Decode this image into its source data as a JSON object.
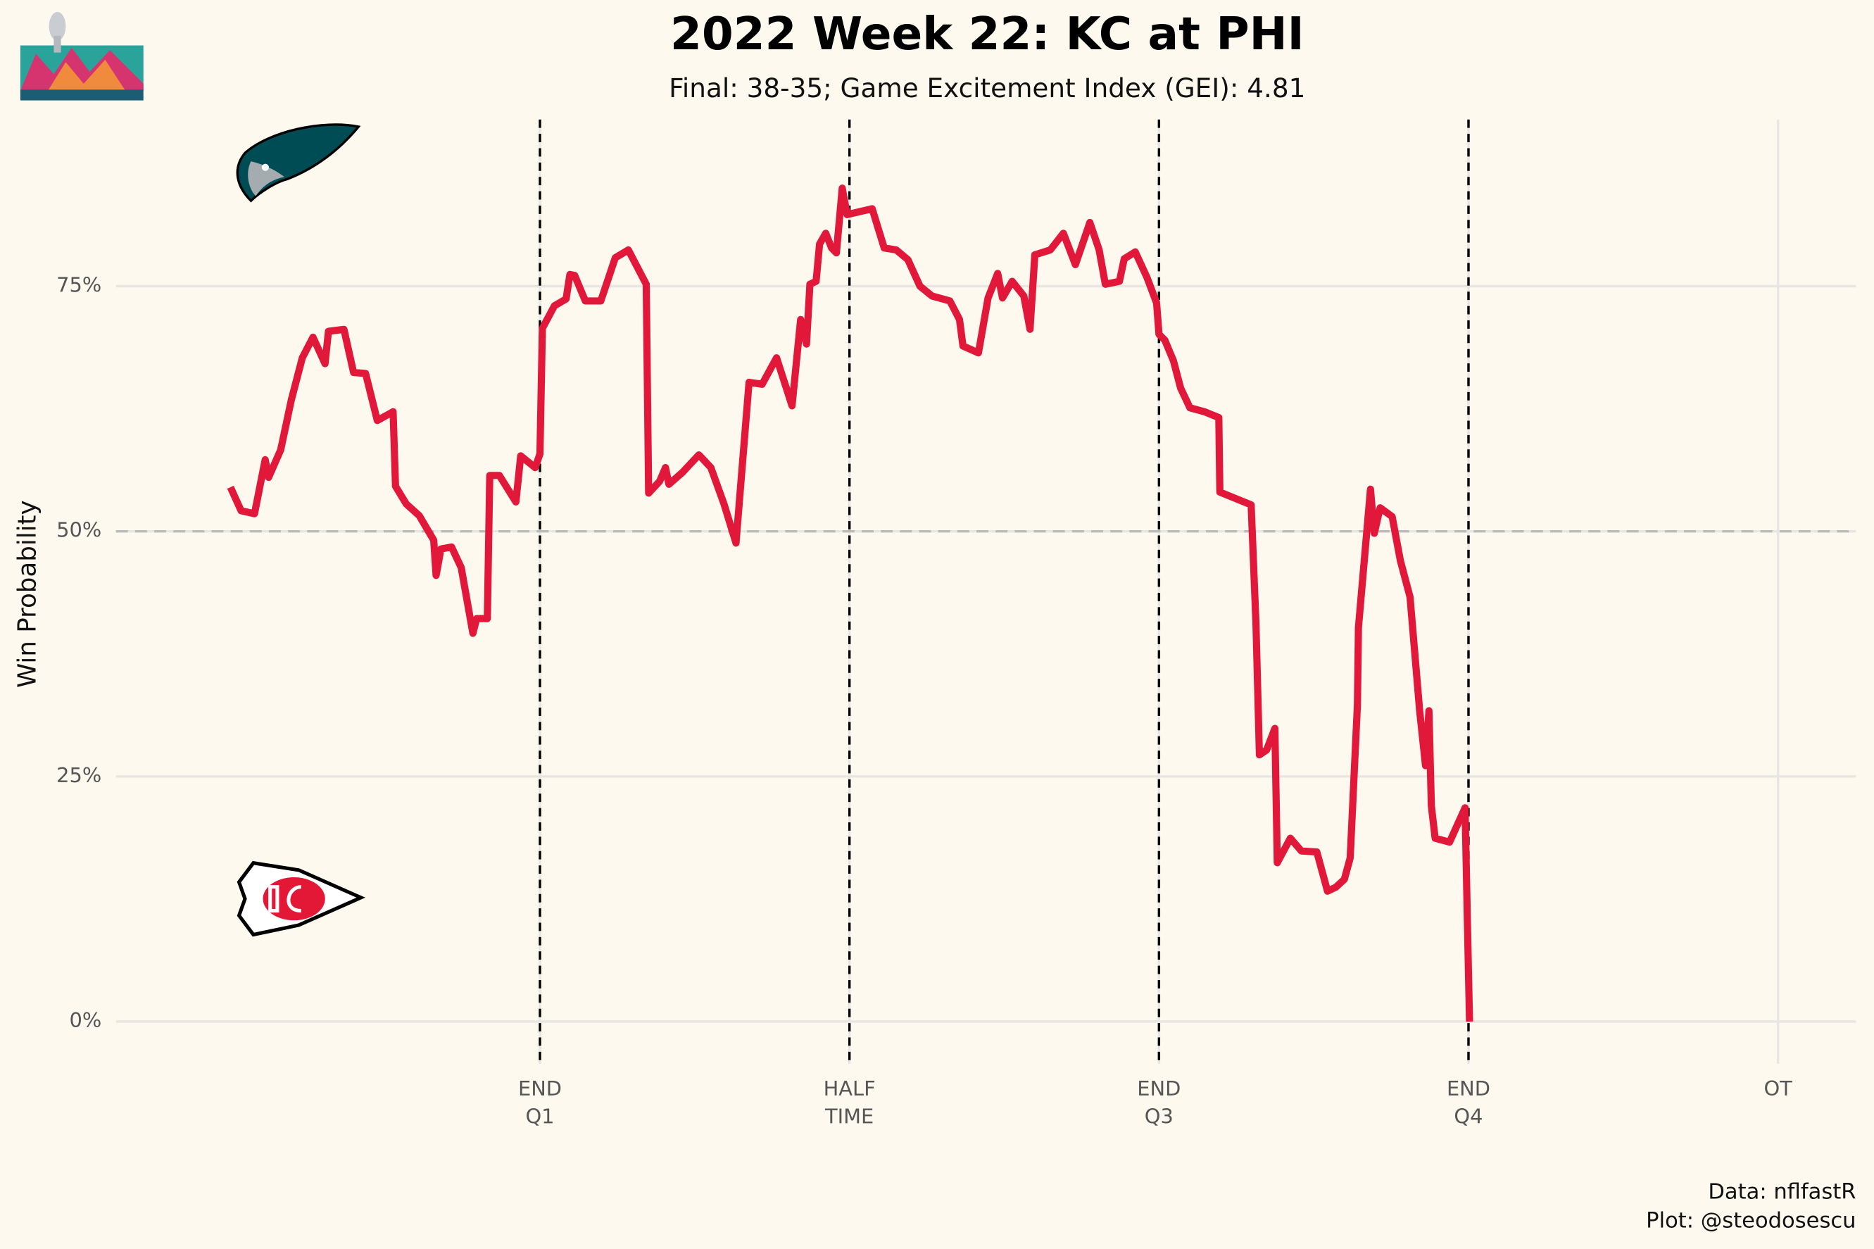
{
  "chart_data": {
    "type": "line",
    "title": "2022 Week 22: KC at PHI",
    "subtitle": "Final: 38-35; Game Excitement Index (GEI): 4.81",
    "y_label": "Win Probability",
    "caption": [
      "Data: nflfastR",
      "Plot: @steodosescu"
    ],
    "color": "#e2183a",
    "x": [
      0,
      31,
      70,
      101,
      111,
      146,
      177,
      209,
      240,
      275,
      285,
      330,
      358,
      393,
      427,
      473,
      480,
      511,
      549,
      591,
      598,
      612,
      643,
      671,
      705,
      716,
      747,
      754,
      782,
      830,
      844,
      886,
      900,
      907,
      942,
      976,
      987,
      1001,
      1032,
      1077,
      1119,
      1157,
      1209,
      1216,
      1248,
      1265,
      1275,
      1314,
      1362,
      1397,
      1435,
      1470,
      1508,
      1546,
      1588,
      1633,
      1658,
      1675,
      1685,
      1703,
      1713,
      1731,
      1748,
      1762,
      1779,
      1793,
      1866,
      1901,
      1936,
      1970,
      2005,
      2040,
      2092,
      2120,
      2130,
      2175,
      2203,
      2231,
      2245,
      2273,
      2307,
      2325,
      2339,
      2384,
      2422,
      2457,
      2499,
      2526,
      2544,
      2585,
      2599,
      2631,
      2665,
      2693,
      2700,
      2717,
      2742,
      2763,
      2790,
      2832,
      2874,
      2877,
      2968,
      2982,
      2992,
      3013,
      3037,
      3044,
      3082,
      3114,
      3159,
      3190,
      3214,
      3239,
      3256,
      3277,
      3280,
      3315,
      3326,
      3343,
      3378,
      3402,
      3430,
      3458,
      3475,
      3485,
      3492,
      3503,
      3545,
      3590,
      3597,
      3603
    ],
    "values": [
      54.5,
      52.1,
      51.8,
      57.3,
      55.5,
      58.3,
      63.4,
      67.7,
      69.8,
      67.1,
      70.4,
      70.6,
      66.2,
      66.1,
      61.3,
      62.2,
      54.6,
      52.8,
      51.6,
      49.1,
      45.5,
      48.2,
      48.4,
      46.3,
      39.6,
      41.1,
      41.1,
      55.7,
      55.7,
      53.0,
      57.7,
      56.5,
      57.9,
      70.7,
      73.0,
      73.7,
      76.2,
      76.1,
      73.5,
      73.5,
      77.9,
      78.7,
      75.2,
      53.9,
      55.1,
      56.5,
      54.8,
      56.0,
      57.8,
      56.5,
      52.8,
      48.8,
      65.2,
      65.0,
      67.7,
      62.8,
      71.6,
      69.1,
      75.2,
      75.5,
      79.3,
      80.4,
      78.9,
      78.4,
      85.0,
      82.3,
      82.9,
      78.9,
      78.7,
      77.7,
      75.0,
      74.0,
      73.5,
      71.6,
      68.9,
      68.2,
      73.8,
      76.3,
      73.8,
      75.5,
      74.0,
      70.6,
      78.2,
      78.7,
      80.4,
      77.2,
      81.5,
      78.7,
      75.2,
      75.5,
      77.8,
      78.5,
      75.9,
      73.3,
      70.1,
      69.5,
      67.4,
      64.6,
      62.6,
      62.2,
      61.6,
      54.0,
      52.7,
      40.6,
      27.2,
      27.7,
      29.9,
      16.2,
      18.7,
      17.4,
      17.3,
      13.3,
      13.7,
      14.5,
      16.7,
      32.3,
      40.2,
      54.3,
      49.8,
      52.4,
      51.5,
      47.0,
      43.3,
      31.7,
      26.1,
      31.7,
      22.0,
      18.7,
      18.3,
      21.8,
      9.8,
      0
    ],
    "xlim": [
      -333,
      4727
    ],
    "xticks": [
      {
        "value": 900,
        "label": "END\nQ1"
      },
      {
        "value": 1800,
        "label": "HALF\nTIME"
      },
      {
        "value": 2700,
        "label": "END\nQ3"
      },
      {
        "value": 3600,
        "label": "END\nQ4"
      },
      {
        "value": 4500,
        "label": "OT"
      }
    ],
    "ylim": [
      -4.3,
      92
    ],
    "yticks": [
      {
        "value": 0,
        "label": "0%"
      },
      {
        "value": 25,
        "label": "25%"
      },
      {
        "value": 50,
        "label": "50%"
      },
      {
        "value": 75,
        "label": "75%"
      }
    ],
    "grid": true,
    "reference_lines": {
      "x": [
        900,
        1800,
        2700,
        3600
      ],
      "y": [
        50
      ]
    }
  }
}
